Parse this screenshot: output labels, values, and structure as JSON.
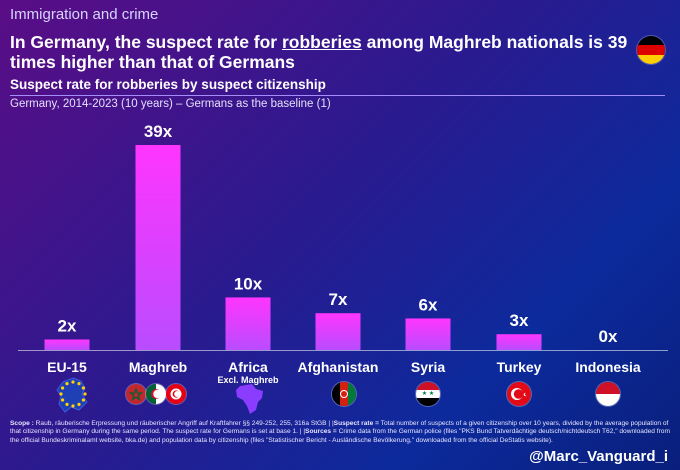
{
  "header": {
    "kicker": "Immigration and crime",
    "headline_part1": "In Germany, the suspect rate for ",
    "headline_emph": "robberies",
    "headline_part2": " among Maghreb nationals is 39 times higher than that of Germans"
  },
  "chart_data": {
    "type": "bar",
    "title": "Suspect rate for robberies by suspect citizenship",
    "subtitle": "Germany, 2014-2023 (10 years) – Germans as the baseline (1)",
    "categories": [
      "EU-15",
      "Maghreb",
      "Africa",
      "Afghanistan",
      "Syria",
      "Turkey",
      "Indonesia"
    ],
    "category_sublabels": [
      "",
      "",
      "Excl. Maghreb",
      "",
      "",
      "",
      ""
    ],
    "values": [
      2,
      39,
      10,
      7,
      6,
      3,
      0
    ],
    "value_labels": [
      "2x",
      "39x",
      "10x",
      "7x",
      "6x",
      "3x",
      "0x"
    ],
    "ylim": [
      0,
      40
    ],
    "xlabel": "",
    "ylabel": "",
    "grid": false,
    "bar_color_top": "#ff35ff",
    "bar_color_bottom": "#b94cff"
  },
  "footer": {
    "scope_label": "Scope :",
    "scope_text": " Raub, räuberische Erpressung und räuberischer Angriff auf Kraftfahrer §§ 249-252, 255, 316a StGB | |",
    "rate_label": "Suspect rate =",
    "rate_text": " Total number of suspects of a given citizenship over 10 years, divided by the average population of that citizenship in Germany during the same period. The suspect rate for Germans is set at base 1. | |",
    "sources_label": "Sources =",
    "sources_text": " Crime data from the German police (files \"PKS Bund Tatverdächtige deutsch/nichtdeutsch T62,\" downloaded from the official Bundeskriminalamt website, bka.de) and population data by citizenship (files \"Statistischer Bericht - Ausländische Bevölkerung,\" downloaded from the official DeStatis website)."
  },
  "handle": "@Marc_Vanguard_i",
  "colors": {
    "germany_black": "#000000",
    "germany_red": "#dd0000",
    "germany_gold": "#ffce00",
    "eu_blue": "#1f3fb5",
    "eu_star": "#ffd400",
    "africa_purple": "#8a3dff"
  }
}
